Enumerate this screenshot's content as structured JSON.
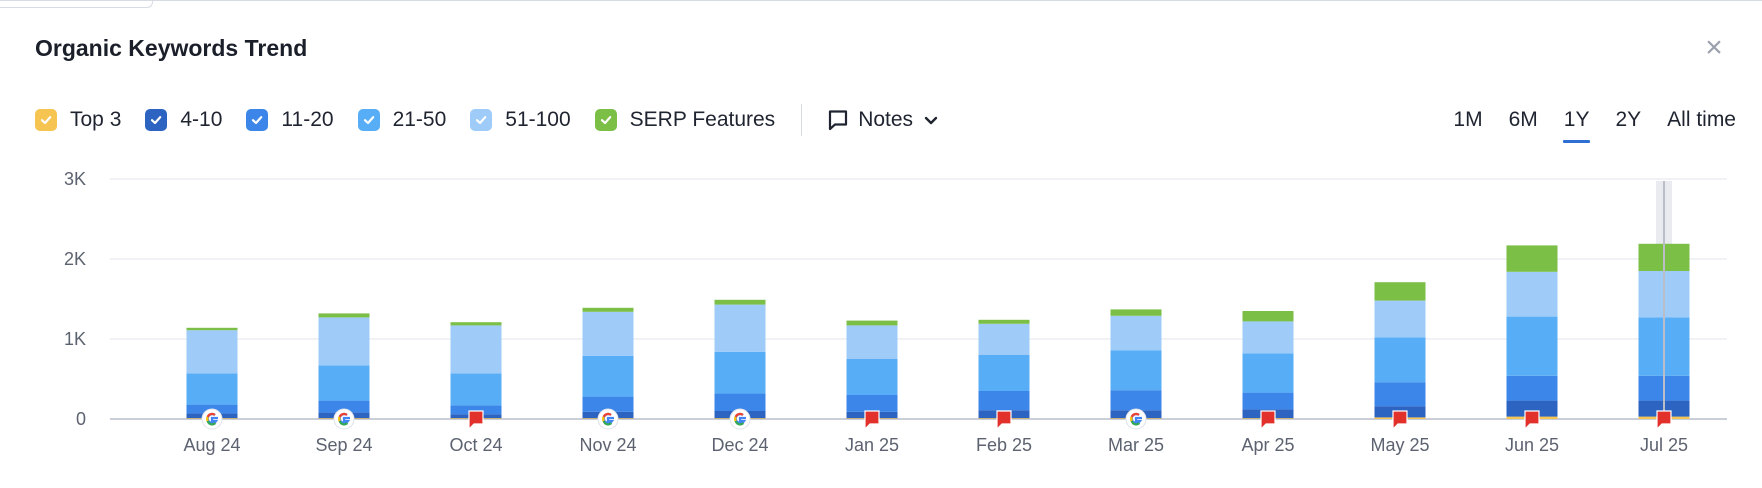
{
  "title": "Organic Keywords Trend",
  "close_label": "×",
  "legend": [
    {
      "label": "Top 3",
      "color": "#f5c451",
      "checked": true
    },
    {
      "label": "4-10",
      "color": "#2d64c2",
      "checked": true
    },
    {
      "label": "11-20",
      "color": "#3b86e8",
      "checked": true
    },
    {
      "label": "21-50",
      "color": "#58aef6",
      "checked": true
    },
    {
      "label": "51-100",
      "color": "#9fcbf9",
      "checked": true
    },
    {
      "label": "SERP Features",
      "color": "#7bbf47",
      "checked": true
    }
  ],
  "notes_label": "Notes",
  "ranges": [
    "1M",
    "6M",
    "1Y",
    "2Y",
    "All time"
  ],
  "active_range": "1Y",
  "chart_data": {
    "type": "bar",
    "stacked": true,
    "categories": [
      "Aug 24",
      "Sep 24",
      "Oct 24",
      "Nov 24",
      "Dec 24",
      "Jan 25",
      "Feb 25",
      "Mar 25",
      "Apr 25",
      "May 25",
      "Jun 25",
      "Jul 25"
    ],
    "series": [
      {
        "name": "Top 3",
        "color": "#f5c451",
        "values": [
          10,
          10,
          10,
          10,
          10,
          10,
          10,
          10,
          10,
          20,
          30,
          30
        ]
      },
      {
        "name": "4-10",
        "color": "#2d64c2",
        "values": [
          60,
          70,
          50,
          80,
          90,
          80,
          100,
          100,
          110,
          140,
          200,
          200
        ]
      },
      {
        "name": "11-20",
        "color": "#3b86e8",
        "values": [
          110,
          150,
          110,
          190,
          220,
          210,
          240,
          250,
          210,
          300,
          310,
          310
        ]
      },
      {
        "name": "21-50",
        "color": "#58aef6",
        "values": [
          390,
          440,
          400,
          510,
          520,
          450,
          450,
          500,
          490,
          560,
          740,
          730
        ]
      },
      {
        "name": "51-100",
        "color": "#9fcbf9",
        "values": [
          540,
          600,
          600,
          550,
          590,
          420,
          390,
          430,
          400,
          460,
          560,
          580
        ]
      },
      {
        "name": "SERP Features",
        "color": "#7bbf47",
        "values": [
          30,
          50,
          40,
          50,
          60,
          60,
          50,
          80,
          130,
          230,
          330,
          340
        ]
      }
    ],
    "ylim": [
      0,
      3250
    ],
    "yticks": [
      0,
      1000,
      2000,
      3000
    ],
    "ytick_labels": [
      "0",
      "1K",
      "2K",
      "3K"
    ],
    "markers": [
      "google",
      "google",
      "flag",
      "google",
      "google",
      "flag",
      "flag",
      "google",
      "flag",
      "flag",
      "flag",
      "flag"
    ],
    "highlight_category": "Jul 25",
    "grid": true,
    "xlabel": "",
    "ylabel": ""
  }
}
